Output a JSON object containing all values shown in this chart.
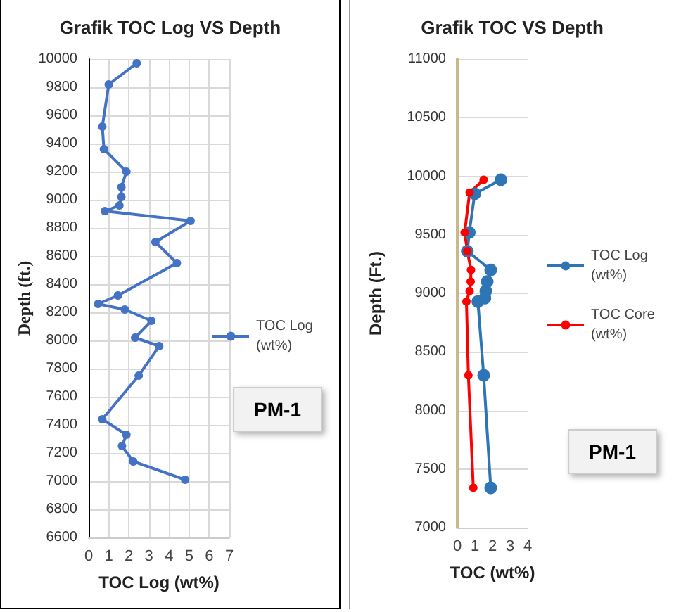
{
  "chart_data": [
    {
      "type": "line",
      "title": "Grafik TOC Log VS Depth",
      "xlabel": "TOC Log (wt%)",
      "ylabel": "Depth (ft.)",
      "xlim": [
        0,
        7
      ],
      "xticks": [
        0,
        1,
        2,
        3,
        4,
        5,
        6,
        7
      ],
      "ylim": [
        6600,
        10000
      ],
      "yticks": [
        6600,
        6800,
        7000,
        7200,
        7400,
        7600,
        7800,
        8000,
        8200,
        8400,
        8600,
        8800,
        9000,
        9200,
        9400,
        9600,
        9800,
        10000
      ],
      "grid": true,
      "legend": "right",
      "marker": "circle",
      "annotations": [
        "PM-1"
      ],
      "series": [
        {
          "name": "TOC Log (wt%)",
          "color": "#4472c4",
          "x": [
            2.39,
            1.0,
            0.68,
            0.76,
            1.88,
            1.63,
            1.63,
            1.53,
            0.81,
            5.07,
            3.32,
            4.39,
            1.46,
            0.47,
            1.8,
            3.12,
            2.31,
            3.51,
            2.49,
            0.68,
            1.88,
            1.66,
            2.22,
            4.8
          ],
          "values": [
            9970,
            9820,
            9520,
            9360,
            9200,
            9090,
            9020,
            8960,
            8920,
            8850,
            8700,
            8550,
            8320,
            8260,
            8220,
            8140,
            8020,
            7960,
            7750,
            7440,
            7330,
            7250,
            7140,
            7010
          ]
        }
      ]
    },
    {
      "type": "line",
      "title": "Grafik TOC VS Depth",
      "xlabel": "TOC (wt%)",
      "ylabel": "Depth (Ft.)",
      "xlim": [
        0,
        4
      ],
      "xticks": [
        0,
        1,
        2,
        3,
        4
      ],
      "ylim": [
        7000,
        11000
      ],
      "yticks": [
        7000,
        7500,
        8000,
        8500,
        9000,
        9500,
        10000,
        10500,
        11000
      ],
      "grid": "y",
      "legend": "right",
      "marker": "circle",
      "annotations": [
        "PM-1"
      ],
      "series": [
        {
          "name": "TOC Log (wt%)",
          "color": "#2e75b6",
          "x": [
            2.48,
            0.99,
            0.68,
            0.57,
            1.9,
            1.7,
            1.62,
            1.57,
            1.17,
            1.5,
            1.9
          ],
          "values": [
            9970,
            9850,
            9520,
            9360,
            9200,
            9100,
            9020,
            8960,
            8930,
            8300,
            7340
          ]
        },
        {
          "name": "TOC Core (wt%)",
          "color": "#ff0000",
          "x": [
            1.5,
            0.7,
            0.42,
            0.57,
            0.78,
            0.76,
            0.7,
            0.52,
            0.63,
            0.91
          ],
          "values": [
            9970,
            9860,
            9520,
            9360,
            9200,
            9100,
            9020,
            8930,
            8300,
            7340
          ]
        }
      ]
    }
  ]
}
